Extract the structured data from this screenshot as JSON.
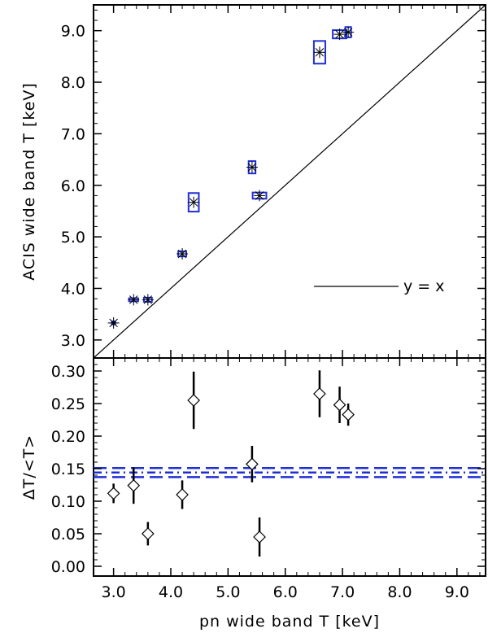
{
  "chart_data": [
    {
      "type": "scatter",
      "panel": "top",
      "ylabel": "ACIS wide band T [keV]",
      "xlim": [
        2.65,
        9.5
      ],
      "ylim": [
        2.65,
        9.5
      ],
      "yticks": [
        3.0,
        4.0,
        5.0,
        6.0,
        7.0,
        8.0,
        9.0
      ],
      "yticklabels": [
        "3.0",
        "4.0",
        "5.0",
        "6.0",
        "7.0",
        "8.0",
        "9.0"
      ],
      "legend": {
        "label": "y = x",
        "placement": "lower-right"
      },
      "line_color": "#000000",
      "box_color": "#1f2fd6",
      "points": [
        {
          "x": 3.0,
          "y": 3.33,
          "xerr": 0.03,
          "yerr": 0.03
        },
        {
          "x": 3.35,
          "y": 3.78,
          "xerr": 0.08,
          "yerr": 0.03
        },
        {
          "x": 3.6,
          "y": 3.78,
          "xerr": 0.07,
          "yerr": 0.04
        },
        {
          "x": 4.2,
          "y": 4.67,
          "xerr": 0.07,
          "yerr": 0.05
        },
        {
          "x": 4.4,
          "y": 5.67,
          "xerr": 0.09,
          "yerr": 0.18
        },
        {
          "x": 5.42,
          "y": 6.35,
          "xerr": 0.06,
          "yerr": 0.12
        },
        {
          "x": 5.55,
          "y": 5.8,
          "xerr": 0.12,
          "yerr": 0.06
        },
        {
          "x": 6.6,
          "y": 8.58,
          "xerr": 0.1,
          "yerr": 0.22
        },
        {
          "x": 6.95,
          "y": 8.93,
          "xerr": 0.12,
          "yerr": 0.08
        },
        {
          "x": 7.1,
          "y": 8.97,
          "xerr": 0.05,
          "yerr": 0.1
        }
      ]
    },
    {
      "type": "scatter",
      "panel": "bottom",
      "xlabel": "pn wide band T [keV]",
      "ylabel": "ΔT/<T>",
      "xlim": [
        2.65,
        9.5
      ],
      "ylim": [
        -0.015,
        0.32
      ],
      "xticks": [
        3.0,
        4.0,
        5.0,
        6.0,
        7.0,
        8.0,
        9.0
      ],
      "xticklabels": [
        "3.0",
        "4.0",
        "5.0",
        "6.0",
        "7.0",
        "8.0",
        "9.0"
      ],
      "yticks": [
        0.0,
        0.05,
        0.1,
        0.15,
        0.2,
        0.25,
        0.3
      ],
      "yticklabels": [
        "0.00",
        "0.05",
        "0.10",
        "0.15",
        "0.20",
        "0.25",
        "0.30"
      ],
      "marker": "diamond",
      "hlines": [
        {
          "y": 0.144,
          "style": "dash-dot",
          "color": "#1f2fd6"
        },
        {
          "y": 0.151,
          "style": "dashed",
          "color": "#1f2fd6"
        },
        {
          "y": 0.137,
          "style": "dashed",
          "color": "#1f2fd6"
        }
      ],
      "points": [
        {
          "x": 3.0,
          "y": 0.112,
          "yerr": 0.015
        },
        {
          "x": 3.35,
          "y": 0.124,
          "yerr": 0.028
        },
        {
          "x": 3.6,
          "y": 0.05,
          "yerr": 0.018
        },
        {
          "x": 4.2,
          "y": 0.11,
          "yerr": 0.022
        },
        {
          "x": 4.4,
          "y": 0.255,
          "yerr": 0.044
        },
        {
          "x": 5.42,
          "y": 0.157,
          "yerr": 0.028
        },
        {
          "x": 5.55,
          "y": 0.045,
          "yerr": 0.03
        },
        {
          "x": 6.6,
          "y": 0.265,
          "yerr": 0.036
        },
        {
          "x": 6.95,
          "y": 0.248,
          "yerr": 0.028
        },
        {
          "x": 7.1,
          "y": 0.233,
          "yerr": 0.017
        }
      ]
    }
  ]
}
